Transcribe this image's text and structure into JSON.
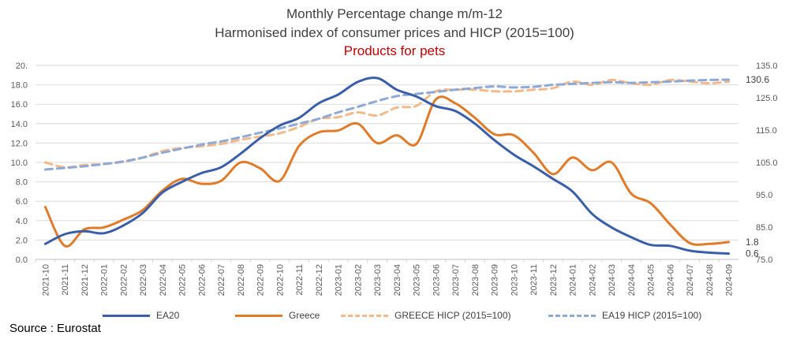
{
  "title": "Monthly Percentage change m/m-12",
  "subtitle": "Harmonised index of consumer prices and  HICP (2015=100)",
  "subtitle2": "Products for pets",
  "source": "Source : Eurostat",
  "colors": {
    "ea20": "#3a5ea8",
    "greece": "#e07b2a",
    "greece_hicp": "#f3b98a",
    "ea19_hicp": "#8fa9d6",
    "grid": "#d9d9d9",
    "axis_text": "#595959",
    "subtitle2": "#c00000"
  },
  "chart_data": {
    "type": "line",
    "x": [
      "2021-10",
      "2021-11",
      "2021-12",
      "2022-01",
      "2022-02",
      "2022-03",
      "2022-04",
      "2022-05",
      "2022-06",
      "2022-07",
      "2022-08",
      "2022-09",
      "2022-10",
      "2022-11",
      "2022-12",
      "2023-01",
      "2023-02",
      "2023-03",
      "2023-04",
      "2023-05",
      "2023-06",
      "2023-07",
      "2023-08",
      "2023-09",
      "2023-10",
      "2023-11",
      "2023-12",
      "2024-01",
      "2024-02",
      "2024-03",
      "2024-04",
      "2024-05",
      "2024-06",
      "2024-07",
      "2024-08",
      "2024-09"
    ],
    "left_axis": {
      "ylim": [
        0,
        20
      ],
      "ticks": [
        "0.0",
        "2.0",
        "4.0",
        "6.0",
        "8.0",
        "10.0",
        "12.0",
        "14.0",
        "16.0",
        "18.0",
        "20."
      ]
    },
    "right_axis": {
      "ylim": [
        75,
        135
      ],
      "ticks": [
        "75.0",
        "85.0",
        "95.0",
        "105.0",
        "115.0",
        "125.0",
        "135.0"
      ]
    },
    "grid": true,
    "legend_position": "bottom",
    "series": [
      {
        "name": "EA20",
        "axis": "left",
        "style": "solid",
        "color_key": "ea20",
        "values": [
          1.6,
          2.6,
          2.9,
          2.7,
          3.5,
          4.8,
          6.9,
          8.0,
          8.9,
          9.5,
          10.9,
          12.5,
          13.8,
          14.6,
          16.1,
          17.0,
          18.3,
          18.7,
          17.5,
          16.8,
          15.8,
          15.3,
          14.0,
          12.3,
          10.8,
          9.6,
          8.3,
          7.0,
          4.7,
          3.3,
          2.3,
          1.5,
          1.4,
          0.9,
          0.7,
          0.6
        ],
        "end_label": "0.6"
      },
      {
        "name": "Greece",
        "axis": "left",
        "style": "solid",
        "color_key": "greece",
        "values": [
          5.4,
          1.4,
          3.1,
          3.3,
          4.1,
          5.1,
          7.1,
          8.3,
          7.8,
          8.1,
          10.0,
          9.4,
          8.1,
          11.7,
          13.1,
          13.3,
          14.0,
          12.0,
          12.8,
          11.9,
          16.5,
          16.1,
          14.6,
          12.9,
          12.8,
          11.0,
          8.8,
          10.5,
          9.2,
          10.0,
          6.8,
          5.8,
          3.6,
          1.7,
          1.6,
          1.8
        ],
        "end_label": "1.8"
      },
      {
        "name": "GREECE HICP (2015=100)",
        "axis": "right",
        "style": "dashed",
        "color_key": "greece_hicp",
        "values": [
          105.0,
          103.5,
          104.2,
          104.5,
          105.2,
          106.5,
          108.5,
          109.5,
          110.0,
          110.7,
          112.0,
          113.0,
          114.0,
          116.0,
          118.5,
          119.0,
          120.5,
          119.5,
          122.0,
          122.5,
          127.0,
          127.5,
          127.5,
          127.0,
          127.0,
          127.5,
          128.0,
          130.0,
          129.0,
          130.5,
          129.5,
          129.0,
          130.5,
          130.0,
          129.5,
          130.0
        ]
      },
      {
        "name": "EA19 HICP (2015=100)",
        "axis": "right",
        "style": "dashed",
        "color_key": "ea19_hicp",
        "values": [
          102.8,
          103.3,
          103.8,
          104.5,
          105.3,
          106.5,
          108.0,
          109.3,
          110.5,
          111.5,
          112.8,
          114.2,
          115.5,
          117.0,
          118.5,
          120.5,
          122.2,
          124.0,
          125.5,
          126.2,
          126.8,
          127.5,
          128.0,
          128.5,
          128.2,
          128.4,
          129.0,
          129.3,
          129.6,
          129.8,
          129.6,
          129.8,
          130.0,
          130.3,
          130.5,
          130.6
        ],
        "end_label": "130.6"
      }
    ]
  }
}
